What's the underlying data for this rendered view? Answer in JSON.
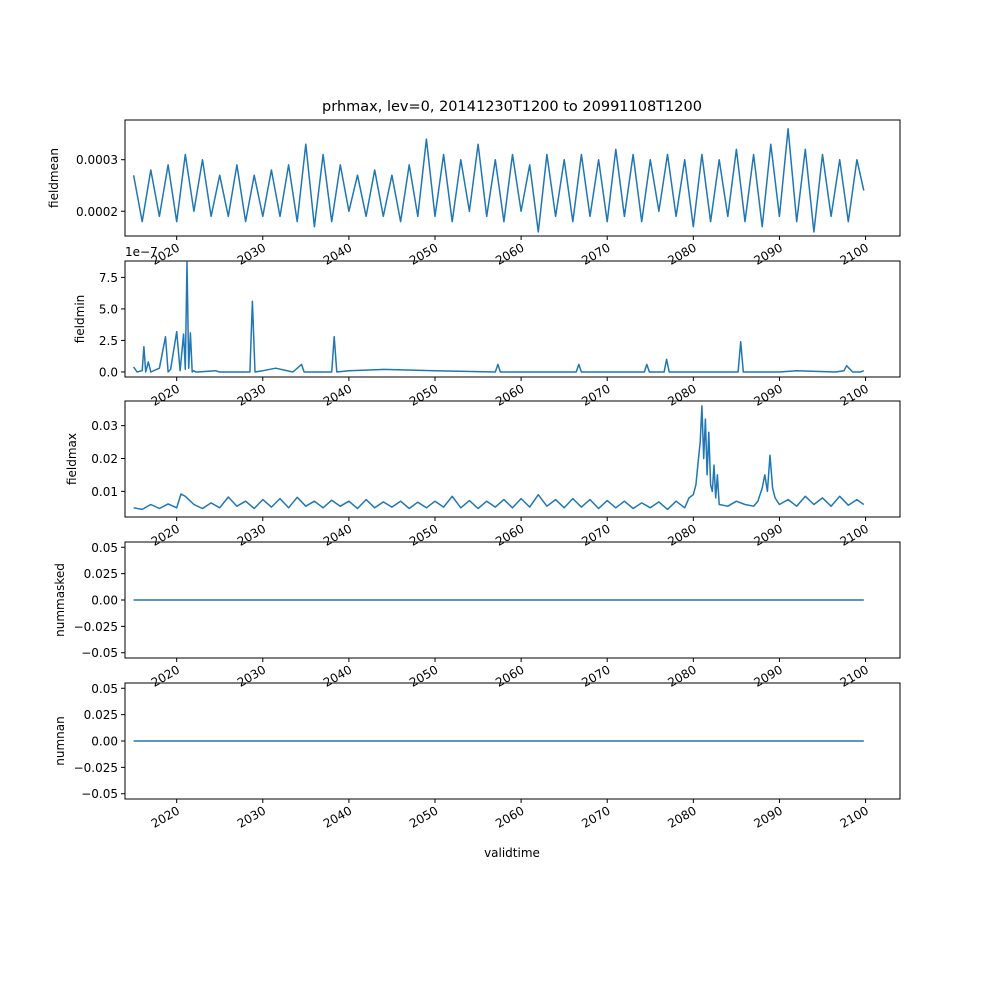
{
  "figure_title": "prhmax, lev=0, 20141230T1200 to 20991108T1200",
  "xlabel": "validtime",
  "line_color": "#1f77b4",
  "chart_data": [
    {
      "type": "line",
      "ylabel": "fieldmean",
      "xlim": [
        2014.0,
        2104.0
      ],
      "ylim": [
        0.000152,
        0.000377
      ],
      "yticks": [
        0.0002,
        0.0003
      ],
      "ytick_labels": [
        "0.0002",
        "0.0003"
      ],
      "offset_label": "",
      "xticks": [
        2020,
        2030,
        2040,
        2050,
        2060,
        2070,
        2080,
        2090,
        2100
      ],
      "xtick_labels": [
        "2020",
        "2030",
        "2040",
        "2050",
        "2060",
        "2070",
        "2080",
        "2090",
        "2100"
      ],
      "x": [
        2015.0,
        2016.0,
        2017.0,
        2018.0,
        2019.0,
        2020.0,
        2021.0,
        2022.0,
        2023.0,
        2024.0,
        2025.0,
        2026.0,
        2027.0,
        2028.0,
        2029.0,
        2030.0,
        2031.0,
        2032.0,
        2033.0,
        2034.0,
        2035.0,
        2036.0,
        2037.0,
        2038.0,
        2039.0,
        2040.0,
        2041.0,
        2042.0,
        2043.0,
        2044.0,
        2045.0,
        2046.0,
        2047.0,
        2048.0,
        2049.0,
        2050.0,
        2051.0,
        2052.0,
        2053.0,
        2054.0,
        2055.0,
        2056.0,
        2057.0,
        2058.0,
        2059.0,
        2060.0,
        2061.0,
        2062.0,
        2063.0,
        2064.0,
        2065.0,
        2066.0,
        2067.0,
        2068.0,
        2069.0,
        2070.0,
        2071.0,
        2072.0,
        2073.0,
        2074.0,
        2075.0,
        2076.0,
        2077.0,
        2078.0,
        2079.0,
        2080.0,
        2081.0,
        2082.0,
        2083.0,
        2084.0,
        2085.0,
        2086.0,
        2087.0,
        2088.0,
        2089.0,
        2090.0,
        2091.0,
        2092.0,
        2093.0,
        2094.0,
        2095.0,
        2096.0,
        2097.0,
        2098.0,
        2099.0,
        2099.8
      ],
      "y": [
        0.00027,
        0.00018,
        0.00028,
        0.00019,
        0.00029,
        0.00018,
        0.00031,
        0.0002,
        0.0003,
        0.00019,
        0.00027,
        0.00019,
        0.00029,
        0.00018,
        0.00027,
        0.00019,
        0.00028,
        0.00019,
        0.00029,
        0.00018,
        0.00033,
        0.00017,
        0.00031,
        0.00018,
        0.00029,
        0.0002,
        0.00027,
        0.00019,
        0.00028,
        0.00019,
        0.00027,
        0.00018,
        0.00029,
        0.00019,
        0.00034,
        0.00019,
        0.00031,
        0.00018,
        0.0003,
        0.0002,
        0.00033,
        0.00019,
        0.0003,
        0.00018,
        0.00031,
        0.0002,
        0.00029,
        0.00016,
        0.00031,
        0.00019,
        0.0003,
        0.00018,
        0.00031,
        0.00019,
        0.0003,
        0.00018,
        0.00032,
        0.00019,
        0.00031,
        0.00018,
        0.0003,
        0.0002,
        0.00031,
        0.00019,
        0.0003,
        0.00017,
        0.00031,
        0.00018,
        0.0003,
        0.00019,
        0.00032,
        0.00018,
        0.00031,
        0.00017,
        0.00033,
        0.00019,
        0.00036,
        0.00018,
        0.00032,
        0.00016,
        0.00031,
        0.00019,
        0.0003,
        0.00018,
        0.0003,
        0.00024
      ]
    },
    {
      "type": "line",
      "ylabel": "fieldmin",
      "xlim": [
        2014.0,
        2104.0
      ],
      "ylim": [
        -4e-08,
        8.8e-07
      ],
      "yticks": [
        0.0,
        2.5e-07,
        5e-07,
        7.5e-07
      ],
      "ytick_labels": [
        "0.0",
        "2.5",
        "5.0",
        "7.5"
      ],
      "offset_label": "1e−7",
      "xticks": [
        2020,
        2030,
        2040,
        2050,
        2060,
        2070,
        2080,
        2090,
        2100
      ],
      "xtick_labels": [
        "2020",
        "2030",
        "2040",
        "2050",
        "2060",
        "2070",
        "2080",
        "2090",
        "2100"
      ],
      "x": [
        2015.0,
        2015.4,
        2016.0,
        2016.2,
        2016.4,
        2016.7,
        2017.0,
        2018.0,
        2018.7,
        2019.0,
        2019.3,
        2020.0,
        2020.4,
        2020.8,
        2021.0,
        2021.2,
        2021.4,
        2021.6,
        2021.8,
        2022.0,
        2022.2,
        2022.4,
        2024.5,
        2025.0,
        2028.5,
        2028.8,
        2029.1,
        2030.0,
        2031.5,
        2033.5,
        2034.5,
        2034.8,
        2038.0,
        2038.3,
        2038.6,
        2040.0,
        2044.0,
        2050.0,
        2057.0,
        2057.3,
        2057.6,
        2060.0,
        2066.4,
        2066.7,
        2067.0,
        2074.3,
        2074.6,
        2074.9,
        2076.6,
        2076.9,
        2077.2,
        2080.0,
        2085.2,
        2085.5,
        2085.8,
        2090.0,
        2092.0,
        2096.5,
        2097.5,
        2097.8,
        2098.5,
        2099.4,
        2099.8
      ],
      "y": [
        4e-08,
        0.0,
        1e-08,
        2e-07,
        0.0,
        8e-08,
        0.0,
        3e-08,
        2.8e-07,
        0.0,
        2e-08,
        3.2e-07,
        1e-08,
        3e-07,
        2e-08,
        8.7e-07,
        3e-08,
        3.1e-07,
        0.0,
        1e-08,
        0.0,
        0.0,
        1e-08,
        0.0,
        0.0,
        5.6e-07,
        0.0,
        1e-08,
        3e-08,
        0.0,
        6e-08,
        0.0,
        0.0,
        2.8e-07,
        0.0,
        1e-08,
        2e-08,
        1e-08,
        0.0,
        6e-08,
        0.0,
        0.0,
        0.0,
        6e-08,
        0.0,
        0.0,
        6e-08,
        0.0,
        0.0,
        1e-07,
        0.0,
        0.0,
        0.0,
        2.4e-07,
        0.0,
        0.0,
        1e-08,
        0.0,
        1e-08,
        5e-08,
        0.0,
        0.0,
        1e-08
      ]
    },
    {
      "type": "line",
      "ylabel": "fieldmax",
      "xlim": [
        2014.0,
        2104.0
      ],
      "ylim": [
        0.0022,
        0.0375
      ],
      "yticks": [
        0.01,
        0.02,
        0.03
      ],
      "ytick_labels": [
        "0.01",
        "0.02",
        "0.03"
      ],
      "offset_label": "",
      "xticks": [
        2020,
        2030,
        2040,
        2050,
        2060,
        2070,
        2080,
        2090,
        2100
      ],
      "xtick_labels": [
        "2020",
        "2030",
        "2040",
        "2050",
        "2060",
        "2070",
        "2080",
        "2090",
        "2100"
      ],
      "x": [
        2015.0,
        2016.0,
        2017.0,
        2018.0,
        2019.0,
        2020.0,
        2020.5,
        2021.0,
        2022.0,
        2023.0,
        2024.0,
        2025.0,
        2026.0,
        2027.0,
        2028.0,
        2029.0,
        2030.0,
        2031.0,
        2032.0,
        2033.0,
        2034.0,
        2035.0,
        2036.0,
        2037.0,
        2038.0,
        2039.0,
        2040.0,
        2041.0,
        2042.0,
        2043.0,
        2044.0,
        2045.0,
        2046.0,
        2047.0,
        2048.0,
        2049.0,
        2050.0,
        2051.0,
        2052.0,
        2053.0,
        2054.0,
        2055.0,
        2056.0,
        2057.0,
        2058.0,
        2059.0,
        2060.0,
        2061.0,
        2062.0,
        2063.0,
        2064.0,
        2065.0,
        2066.0,
        2067.0,
        2068.0,
        2069.0,
        2070.0,
        2071.0,
        2072.0,
        2073.0,
        2074.0,
        2075.0,
        2076.0,
        2077.0,
        2078.0,
        2079.0,
        2079.5,
        2080.0,
        2080.3,
        2080.6,
        2080.8,
        2081.0,
        2081.2,
        2081.4,
        2081.6,
        2081.8,
        2082.0,
        2082.2,
        2082.4,
        2082.6,
        2082.8,
        2083.0,
        2084.0,
        2085.0,
        2086.0,
        2087.0,
        2087.5,
        2088.0,
        2088.3,
        2088.6,
        2088.9,
        2089.2,
        2089.5,
        2090.0,
        2091.0,
        2092.0,
        2093.0,
        2094.0,
        2095.0,
        2096.0,
        2097.0,
        2098.0,
        2099.0,
        2099.8
      ],
      "y": [
        0.005,
        0.0045,
        0.006,
        0.0048,
        0.0062,
        0.005,
        0.0092,
        0.0085,
        0.006,
        0.0048,
        0.0065,
        0.005,
        0.0083,
        0.0055,
        0.007,
        0.0048,
        0.0075,
        0.0052,
        0.0078,
        0.005,
        0.0082,
        0.0055,
        0.007,
        0.005,
        0.0073,
        0.0055,
        0.007,
        0.0048,
        0.0075,
        0.005,
        0.0068,
        0.0052,
        0.007,
        0.0048,
        0.0067,
        0.005,
        0.007,
        0.0052,
        0.0085,
        0.005,
        0.0072,
        0.0048,
        0.007,
        0.0052,
        0.0075,
        0.005,
        0.0078,
        0.0052,
        0.009,
        0.0055,
        0.0075,
        0.005,
        0.0078,
        0.0052,
        0.0075,
        0.0048,
        0.0072,
        0.005,
        0.007,
        0.0048,
        0.0065,
        0.005,
        0.0068,
        0.0045,
        0.007,
        0.005,
        0.008,
        0.009,
        0.012,
        0.02,
        0.025,
        0.036,
        0.02,
        0.032,
        0.015,
        0.028,
        0.012,
        0.01,
        0.018,
        0.008,
        0.015,
        0.006,
        0.0055,
        0.007,
        0.006,
        0.0055,
        0.007,
        0.011,
        0.015,
        0.01,
        0.021,
        0.011,
        0.008,
        0.006,
        0.0075,
        0.0055,
        0.0085,
        0.006,
        0.008,
        0.0055,
        0.0085,
        0.0058,
        0.0075,
        0.006
      ]
    },
    {
      "type": "line",
      "ylabel": "nummasked",
      "xlim": [
        2014.0,
        2104.0
      ],
      "ylim": [
        -0.055,
        0.055
      ],
      "yticks": [
        -0.05,
        -0.025,
        0.0,
        0.025,
        0.05
      ],
      "ytick_labels": [
        "−0.05",
        "−0.025",
        "0.00",
        "0.025",
        "0.05"
      ],
      "offset_label": "",
      "xticks": [
        2020,
        2030,
        2040,
        2050,
        2060,
        2070,
        2080,
        2090,
        2100
      ],
      "xtick_labels": [
        "2020",
        "2030",
        "2040",
        "2050",
        "2060",
        "2070",
        "2080",
        "2090",
        "2100"
      ],
      "x": [
        2015.0,
        2099.8
      ],
      "y": [
        0.0,
        0.0
      ]
    },
    {
      "type": "line",
      "ylabel": "numnan",
      "xlim": [
        2014.0,
        2104.0
      ],
      "ylim": [
        -0.055,
        0.055
      ],
      "yticks": [
        -0.05,
        -0.025,
        0.0,
        0.025,
        0.05
      ],
      "ytick_labels": [
        "−0.05",
        "−0.025",
        "0.00",
        "0.025",
        "0.05"
      ],
      "offset_label": "",
      "xticks": [
        2020,
        2030,
        2040,
        2050,
        2060,
        2070,
        2080,
        2090,
        2100
      ],
      "xtick_labels": [
        "2020",
        "2030",
        "2040",
        "2050",
        "2060",
        "2070",
        "2080",
        "2090",
        "2100"
      ],
      "x": [
        2015.0,
        2099.8
      ],
      "y": [
        0.0,
        0.0
      ]
    }
  ]
}
